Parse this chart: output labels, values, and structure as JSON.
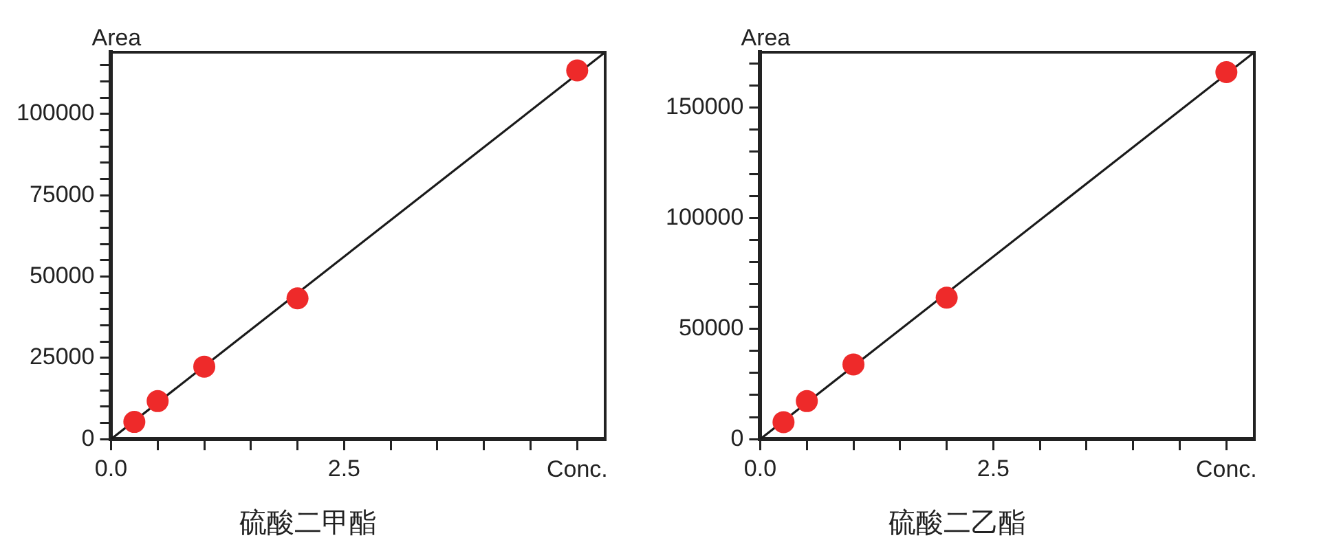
{
  "chart_data": [
    {
      "type": "scatter",
      "title": "硫酸二甲酯",
      "xlabel": "Conc.",
      "ylabel": "Area",
      "xlim": [
        0,
        5.3
      ],
      "ylim": [
        0,
        119000
      ],
      "xticks": [
        {
          "value": 0,
          "label": "0.0"
        },
        {
          "value": 0.5,
          "label": null
        },
        {
          "value": 1,
          "label": null
        },
        {
          "value": 1.5,
          "label": null
        },
        {
          "value": 2,
          "label": null
        },
        {
          "value": 2.5,
          "label": "2.5"
        },
        {
          "value": 3,
          "label": null
        },
        {
          "value": 3.5,
          "label": null
        },
        {
          "value": 4,
          "label": null
        },
        {
          "value": 4.5,
          "label": null
        },
        {
          "value": 5,
          "label": null
        }
      ],
      "yticks": [
        0,
        {
          "value": 5000,
          "label": null
        },
        {
          "value": 10000,
          "label": null
        },
        {
          "value": 15000,
          "label": null
        },
        {
          "value": 20000,
          "label": null
        },
        25000,
        {
          "value": 30000,
          "label": null
        },
        {
          "value": 35000,
          "label": null
        },
        {
          "value": 40000,
          "label": null
        },
        {
          "value": 45000,
          "label": null
        },
        50000,
        {
          "value": 55000,
          "label": null
        },
        {
          "value": 60000,
          "label": null
        },
        {
          "value": 65000,
          "label": null
        },
        {
          "value": 70000,
          "label": null
        },
        75000,
        {
          "value": 80000,
          "label": null
        },
        {
          "value": 85000,
          "label": null
        },
        {
          "value": 90000,
          "label": null
        },
        {
          "value": 95000,
          "label": null
        },
        100000,
        {
          "value": 105000,
          "label": null
        },
        {
          "value": 110000,
          "label": null
        },
        {
          "value": 115000,
          "label": null
        }
      ],
      "grid": false,
      "legend": false,
      "series": [
        {
          "type": "line",
          "color": "#1a1a1a",
          "marker": "none",
          "line_style": "solid",
          "x": [
            0,
            5.3
          ],
          "values": [
            0,
            119000
          ]
        },
        {
          "type": "scatter",
          "color": "#ee2a2a",
          "marker": "circle",
          "x": [
            0.25,
            0.5,
            1,
            2,
            5
          ],
          "values": [
            5300,
            11700,
            22300,
            43300,
            113400
          ]
        }
      ]
    },
    {
      "type": "scatter",
      "title": "硫酸二乙酯",
      "xlabel": "Conc.",
      "ylabel": "Area",
      "xlim": [
        0,
        5.3
      ],
      "ylim": [
        0,
        175000
      ],
      "xticks": [
        {
          "value": 0,
          "label": "0.0"
        },
        {
          "value": 0.5,
          "label": null
        },
        {
          "value": 1,
          "label": null
        },
        {
          "value": 1.5,
          "label": null
        },
        {
          "value": 2,
          "label": null
        },
        {
          "value": 2.5,
          "label": "2.5"
        },
        {
          "value": 3,
          "label": null
        },
        {
          "value": 3.5,
          "label": null
        },
        {
          "value": 4,
          "label": null
        },
        {
          "value": 4.5,
          "label": null
        },
        {
          "value": 5,
          "label": null
        }
      ],
      "yticks": [
        0,
        {
          "value": 10000,
          "label": null
        },
        {
          "value": 20000,
          "label": null
        },
        {
          "value": 30000,
          "label": null
        },
        {
          "value": 40000,
          "label": null
        },
        50000,
        {
          "value": 60000,
          "label": null
        },
        {
          "value": 70000,
          "label": null
        },
        {
          "value": 80000,
          "label": null
        },
        {
          "value": 90000,
          "label": null
        },
        100000,
        {
          "value": 110000,
          "label": null
        },
        {
          "value": 120000,
          "label": null
        },
        {
          "value": 130000,
          "label": null
        },
        {
          "value": 140000,
          "label": null
        },
        150000,
        {
          "value": 160000,
          "label": null
        },
        {
          "value": 170000,
          "label": null
        }
      ],
      "grid": false,
      "legend": false,
      "series": [
        {
          "type": "line",
          "color": "#1a1a1a",
          "marker": "none",
          "line_style": "solid",
          "x": [
            0,
            5.3
          ],
          "values": [
            0,
            175000
          ]
        },
        {
          "type": "scatter",
          "color": "#ee2a2a",
          "marker": "circle",
          "x": [
            0.25,
            0.5,
            1,
            2,
            5
          ],
          "values": [
            7700,
            17200,
            33800,
            64000,
            166000
          ]
        }
      ]
    }
  ]
}
